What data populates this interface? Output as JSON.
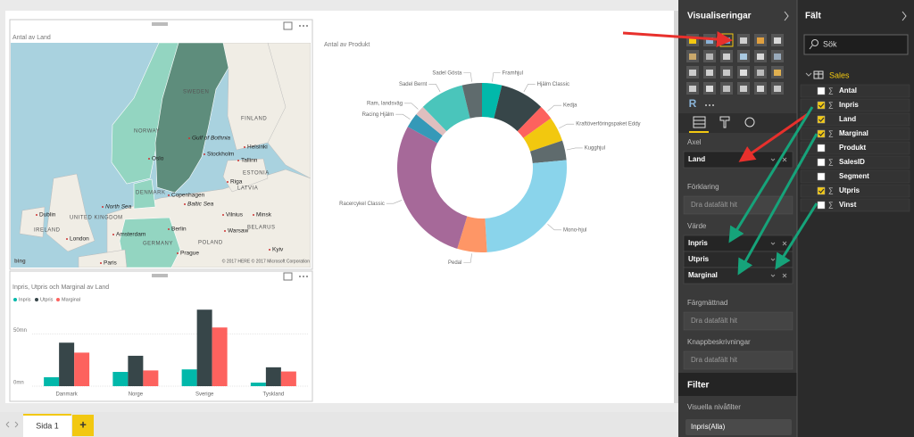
{
  "report": {
    "map": {
      "title": "Antal av Land",
      "labels": [
        "SWEDEN",
        "NORWAY",
        "FINLAND",
        "Gulf of Bothnia",
        "Stockholm",
        "Oslo",
        "Helsinki",
        "Tallinn",
        "ESTONIA",
        "LATVIA",
        "Riga",
        "DENMARK",
        "Copenhagen",
        "Baltic Sea",
        "North Sea",
        "UNITED KINGDOM",
        "IRELAND",
        "Dublin",
        "London",
        "Amsterdam",
        "Berlin",
        "GERMANY",
        "POLAND",
        "Warsaw",
        "Vilnius",
        "Minsk",
        "BELARUS",
        "Prague",
        "Paris",
        "Kyiv"
      ],
      "attribution": "© 2017 HERE © 2017 Microsoft Corporation",
      "logo": "bing"
    },
    "donut": {
      "type": "pie",
      "title": "Antal av Produkt",
      "categories": [
        "Framhjul",
        "Hjälm Classic",
        "Kedja",
        "Kraftöverföringspaket Eddy",
        "Kugghjul",
        "Mono-hjul",
        "Pedal",
        "Racercykel Classic",
        "Racing Hjälm",
        "Ram, landsväg",
        "Sadel Bernt",
        "Sadel Gösta"
      ],
      "values": [
        4,
        9,
        3,
        5,
        4,
        27,
        6,
        30,
        3,
        2,
        9,
        4
      ],
      "colors": [
        "#01b8aa",
        "#374649",
        "#fd625e",
        "#f2c80f",
        "#5f6b6d",
        "#8ad4eb",
        "#fe9666",
        "#a66999",
        "#3599b8",
        "#dfbfbf",
        "#4ac5bb",
        "#5f6b6d"
      ]
    },
    "bar_chart": {
      "type": "bar",
      "title": "Inpris, Utpris och Marginal av Land",
      "categories": [
        "Danmark",
        "Norge",
        "Sverige",
        "Tyskland"
      ],
      "series": [
        {
          "name": "Inpris",
          "color": "#01b8aa",
          "values": [
            8.5,
            13.6,
            16,
            3.4
          ]
        },
        {
          "name": "Utpris",
          "color": "#374649",
          "values": [
            41.5,
            29,
            73,
            18
          ]
        },
        {
          "name": "Marginal",
          "color": "#fd625e",
          "values": [
            32,
            15,
            56,
            14
          ]
        }
      ],
      "ylim": [
        0,
        80
      ],
      "yticks": [
        {
          "value": 0,
          "label": "0mn"
        },
        {
          "value": 50,
          "label": "50mn"
        }
      ],
      "grid": true
    }
  },
  "tabs": {
    "pages": [
      "Sida 1"
    ],
    "add": "+"
  },
  "visualizations": {
    "title": "Visualiseringar",
    "r_icon": "R",
    "wells": [
      {
        "label": "Axel",
        "fields": [
          "Land"
        ]
      },
      {
        "label": "Förklaring",
        "placeholder": "Dra datafält hit"
      },
      {
        "label": "Värde",
        "fields": [
          "Inpris",
          "Utpris",
          "Marginal"
        ]
      },
      {
        "label": "Färgmättnad",
        "placeholder": "Dra datafält hit"
      },
      {
        "label": "Knappbeskrivningar",
        "placeholder": "Dra datafält hit"
      }
    ],
    "filter": {
      "title": "Filter",
      "subtitle": "Visuella nivåfilter",
      "items": [
        "Inpris(Alla)"
      ]
    }
  },
  "fields": {
    "title": "Fält",
    "search": "Sök",
    "table": "Sales",
    "items": [
      {
        "name": "Antal",
        "measure": "∑",
        "checked": false
      },
      {
        "name": "Inpris",
        "measure": "∑",
        "checked": true
      },
      {
        "name": "Land",
        "checked": true
      },
      {
        "name": "Marginal",
        "measure": "∑",
        "checked": true
      },
      {
        "name": "Produkt",
        "checked": false
      },
      {
        "name": "SalesID",
        "measure": "∑",
        "checked": false
      },
      {
        "name": "Segment",
        "checked": false
      },
      {
        "name": "Utpris",
        "measure": "∑",
        "checked": true
      },
      {
        "name": "Vinst",
        "measure": "∑",
        "checked": false
      }
    ]
  }
}
